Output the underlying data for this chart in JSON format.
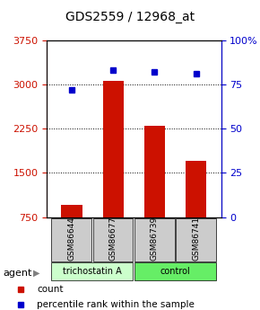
{
  "title": "GDS2559 / 12968_at",
  "samples": [
    "GSM86644",
    "GSM86677",
    "GSM86739",
    "GSM86741"
  ],
  "counts": [
    950,
    3060,
    2300,
    1700
  ],
  "percentiles": [
    72,
    83,
    82,
    81
  ],
  "ylim_left": [
    750,
    3750
  ],
  "ylim_right": [
    0,
    100
  ],
  "yticks_left": [
    750,
    1500,
    2250,
    3000,
    3750
  ],
  "yticks_right": [
    0,
    25,
    50,
    75,
    100
  ],
  "bar_color": "#cc1100",
  "dot_color": "#0000cc",
  "agent_labels": [
    "trichostatin A",
    "control"
  ],
  "trichostatin_color": "#ccffcc",
  "control_color": "#66ee66",
  "sample_box_color": "#cccccc",
  "background_color": "#ffffff",
  "legend_count_color": "#cc1100",
  "legend_pct_color": "#0000cc"
}
